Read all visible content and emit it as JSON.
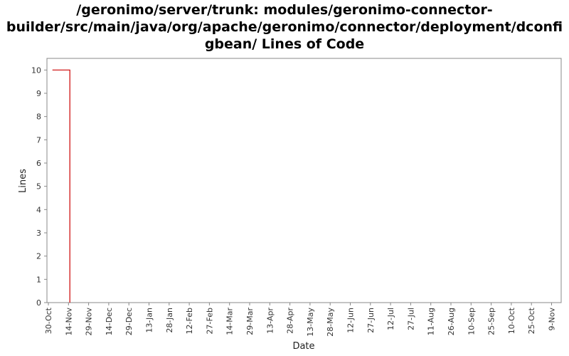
{
  "chart_data": {
    "type": "line",
    "title_lines": [
      "/geronimo/server/trunk: modules/geronimo-connector-",
      "builder/src/main/java/org/apache/geronimo/connector/deployment/dconfi",
      "gbean/ Lines of Code"
    ],
    "xlabel": "Date",
    "ylabel": "Lines",
    "x_tick_labels": [
      "30-Oct",
      "14-Nov",
      "29-Nov",
      "14-Dec",
      "29-Dec",
      "13-Jan",
      "28-Jan",
      "12-Feb",
      "27-Feb",
      "14-Mar",
      "29-Mar",
      "13-Apr",
      "28-Apr",
      "13-May",
      "28-May",
      "12-Jun",
      "27-Jun",
      "12-Jul",
      "27-Jul",
      "11-Aug",
      "26-Aug",
      "10-Sep",
      "25-Sep",
      "10-Oct",
      "25-Oct",
      "9-Nov"
    ],
    "y_tick_labels": [
      "0",
      "1",
      "2",
      "3",
      "4",
      "5",
      "6",
      "7",
      "8",
      "9",
      "10"
    ],
    "ylim": [
      0,
      10.5
    ],
    "x_tick_step_days": 15,
    "grid": false,
    "legend": "none",
    "series": [
      {
        "color": "#cc0000",
        "points": [
          {
            "date": "2-Nov",
            "value": 10
          },
          {
            "date": "15-Nov",
            "value": 10
          },
          {
            "date": "15-Nov",
            "value": 0
          }
        ]
      }
    ]
  }
}
